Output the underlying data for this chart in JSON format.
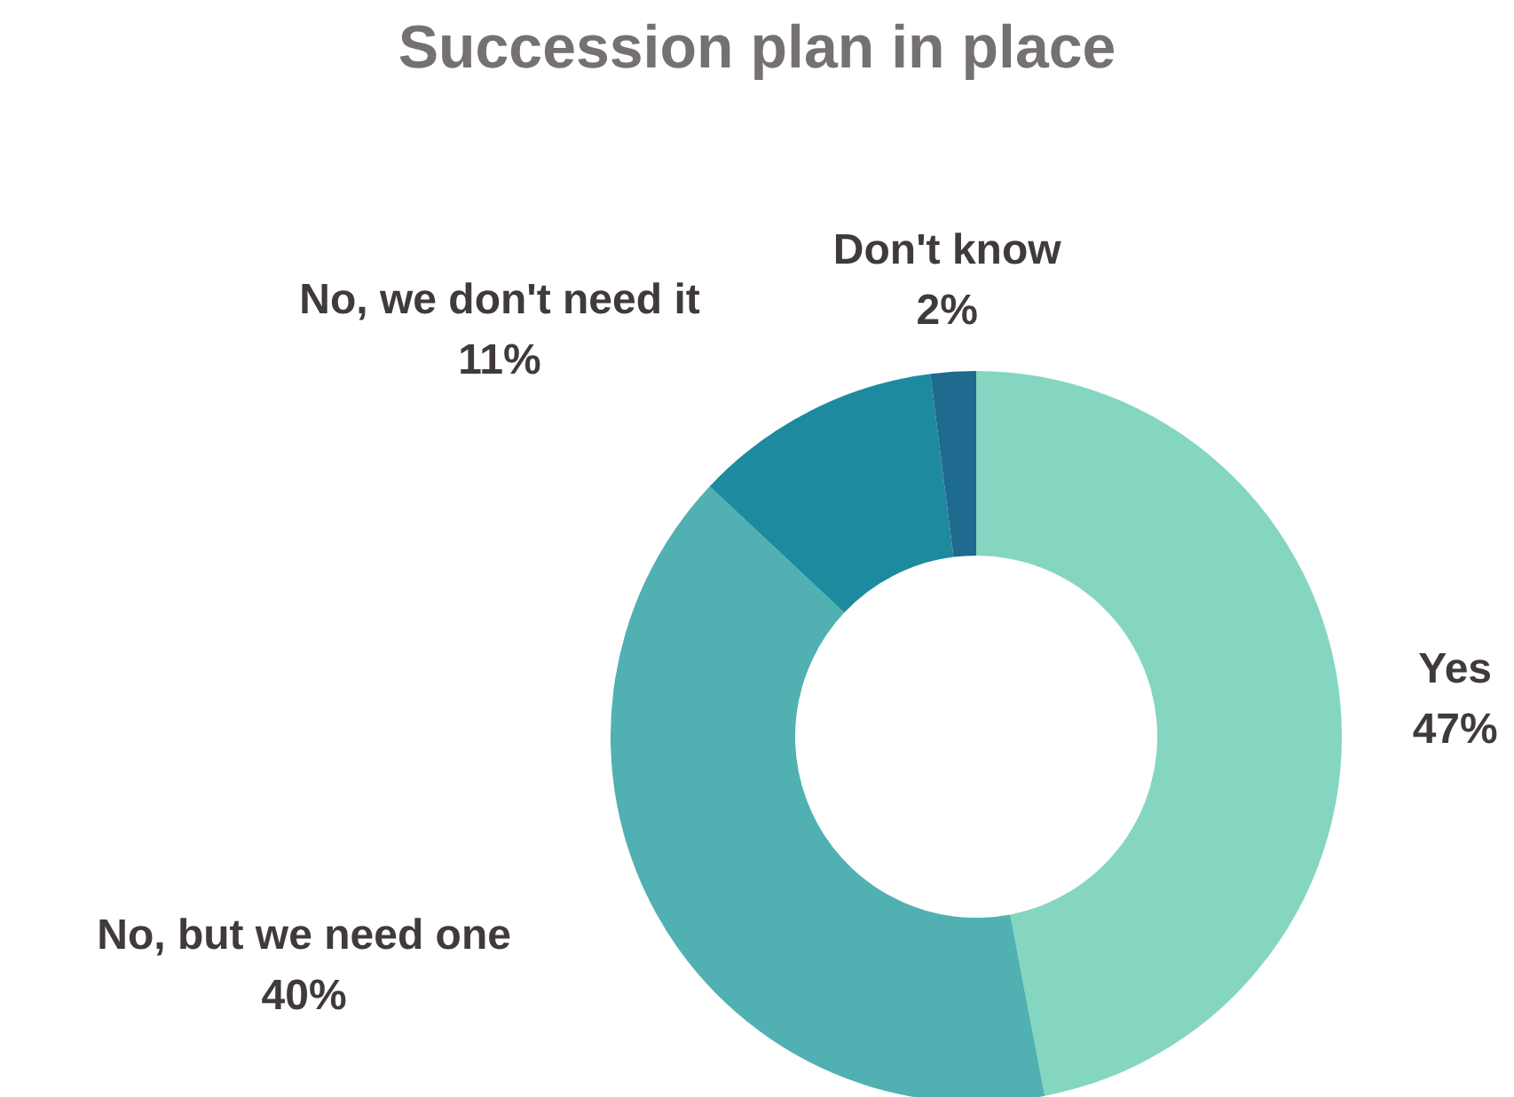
{
  "chart_data": {
    "type": "donut",
    "title": "Succession plan in place",
    "categories": [
      "Yes",
      "No, but we need one",
      "No, we don't need it",
      "Don't know"
    ],
    "values": [
      47,
      40,
      11,
      2
    ],
    "value_labels": [
      "47%",
      "40%",
      "11%",
      "2%"
    ],
    "colors": [
      "#84d6c0",
      "#50b0b2",
      "#1e8aa0",
      "#1f6a8f"
    ],
    "legend": false
  }
}
